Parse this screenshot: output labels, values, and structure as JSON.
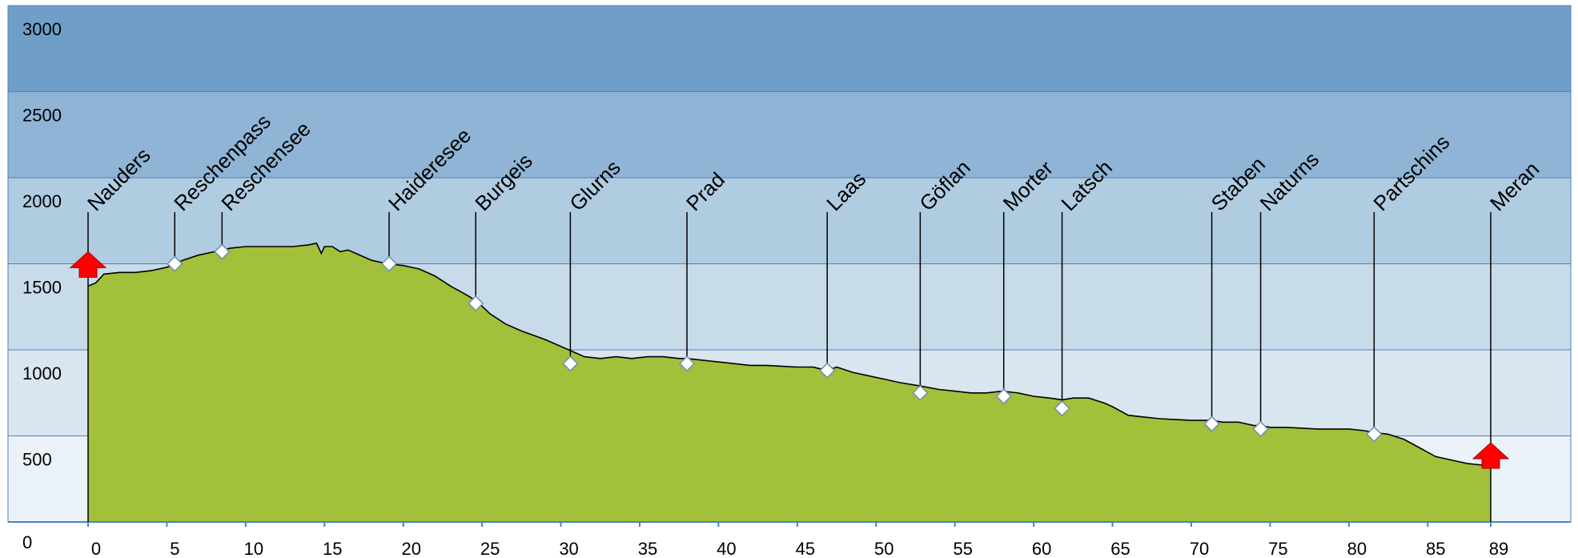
{
  "chart_data": {
    "type": "area",
    "title": "",
    "xlabel": "",
    "ylabel": "",
    "xlim": [
      0,
      89
    ],
    "ylim": [
      0,
      3000
    ],
    "x_ticks": [
      0,
      5,
      10,
      15,
      20,
      25,
      30,
      35,
      40,
      45,
      50,
      55,
      60,
      65,
      70,
      75,
      80,
      85,
      89
    ],
    "y_ticks": [
      0,
      500,
      1000,
      1500,
      2000,
      2500,
      3000
    ],
    "grid": true,
    "legend": "none",
    "colors": {
      "area_fill": "#a2c03a",
      "area_line": "#000000",
      "band_0_500": "#ebf2f7",
      "band_500_1000": "#d9e6f0",
      "band_1000_1500": "#c8dbe9",
      "band_1500_2000": "#b0cce1",
      "band_2000_2500": "#8fb4d5",
      "band_2500_3000": "#6f9fc8",
      "axis": "#4f81bd",
      "start_end_marker": "#ff0000"
    },
    "profile": {
      "x": [
        0,
        0.5,
        1,
        2,
        3,
        4,
        5,
        5.5,
        6,
        7,
        7.5,
        8,
        8.6,
        9,
        10,
        11,
        12,
        13,
        14,
        14.5,
        14.8,
        15,
        15.5,
        16,
        16.5,
        17,
        18,
        19,
        20,
        21,
        22,
        23,
        24,
        24.7,
        25.5,
        26.5,
        27.5,
        29,
        30.5,
        31.5,
        32.5,
        33.5,
        34.5,
        35.5,
        36.5,
        37.5,
        38,
        39,
        40,
        41,
        42,
        43,
        44,
        45,
        46,
        46.9,
        47.5,
        48.5,
        49.5,
        50.5,
        51.5,
        52.8,
        54,
        55,
        56,
        57,
        58,
        59,
        60,
        61,
        61.8,
        62.5,
        63.5,
        64.5,
        65,
        66,
        67,
        68,
        69,
        70,
        71,
        71.3,
        72,
        73,
        74,
        74.4,
        75,
        76,
        77,
        78,
        79,
        80,
        81,
        81.6,
        82.5,
        83.5,
        84.5,
        85.5,
        86.5,
        87.5,
        88.5,
        89
      ],
      "y": [
        1370,
        1390,
        1440,
        1450,
        1450,
        1460,
        1480,
        1500,
        1520,
        1550,
        1560,
        1570,
        1580,
        1590,
        1600,
        1600,
        1600,
        1600,
        1610,
        1620,
        1560,
        1600,
        1600,
        1570,
        1580,
        1560,
        1520,
        1500,
        1490,
        1470,
        1430,
        1370,
        1320,
        1280,
        1210,
        1150,
        1110,
        1060,
        1000,
        960,
        950,
        960,
        950,
        960,
        960,
        950,
        950,
        940,
        930,
        920,
        910,
        910,
        905,
        900,
        900,
        880,
        900,
        870,
        850,
        830,
        810,
        790,
        770,
        760,
        750,
        750,
        760,
        750,
        730,
        720,
        710,
        720,
        720,
        690,
        670,
        620,
        610,
        600,
        595,
        590,
        590,
        590,
        580,
        580,
        560,
        560,
        550,
        550,
        545,
        540,
        540,
        540,
        530,
        520,
        510,
        480,
        430,
        380,
        360,
        340,
        330,
        330
      ]
    },
    "stations": [
      {
        "name": "Nauders",
        "km": 0,
        "alt": 1440,
        "marker": "arrow"
      },
      {
        "name": "Reschenpass",
        "km": 5.5,
        "alt": 1500,
        "marker": "diamond"
      },
      {
        "name": "Reschensee",
        "km": 8.5,
        "alt": 1570,
        "marker": "diamond"
      },
      {
        "name": "Haideresee",
        "km": 19.1,
        "alt": 1500,
        "marker": "diamond"
      },
      {
        "name": "Burgeis",
        "km": 24.6,
        "alt": 1270,
        "marker": "diamond"
      },
      {
        "name": "Glurns",
        "km": 30.6,
        "alt": 920,
        "marker": "diamond"
      },
      {
        "name": "Prad",
        "km": 38,
        "alt": 920,
        "marker": "diamond"
      },
      {
        "name": "Laas",
        "km": 46.9,
        "alt": 880,
        "marker": "diamond"
      },
      {
        "name": "Göflan",
        "km": 52.8,
        "alt": 750,
        "marker": "diamond"
      },
      {
        "name": "Morter",
        "km": 58.1,
        "alt": 730,
        "marker": "diamond"
      },
      {
        "name": "Latsch",
        "km": 61.8,
        "alt": 660,
        "marker": "diamond"
      },
      {
        "name": "Staben",
        "km": 71.3,
        "alt": 570,
        "marker": "diamond"
      },
      {
        "name": "Naturns",
        "km": 74.4,
        "alt": 540,
        "marker": "diamond"
      },
      {
        "name": "Partschins",
        "km": 81.6,
        "alt": 510,
        "marker": "diamond"
      },
      {
        "name": "Meran",
        "km": 89,
        "alt": 330,
        "marker": "arrow"
      }
    ]
  }
}
